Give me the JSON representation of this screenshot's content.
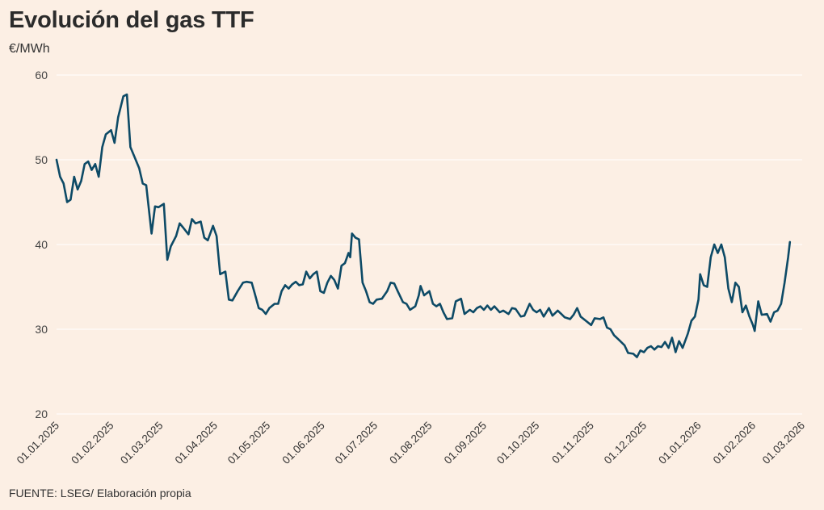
{
  "header": {
    "title": "Evolución del gas TTF",
    "unit": "€/MWh"
  },
  "footer": {
    "source": "FUENTE: LSEG/ Elaboración propia"
  },
  "chart_data": {
    "type": "line",
    "title": "Evolución del gas TTF",
    "ylabel": "€/MWh",
    "ylim": [
      20,
      60
    ],
    "yticks": [
      "60",
      "50",
      "40",
      "30",
      "20"
    ],
    "grid": true,
    "line_color": "#0d4a66",
    "xticks": [
      "01.01.2025",
      "01.02.2025",
      "01.03.2025",
      "01.04.2025",
      "01.05.2025",
      "01.06.2025",
      "01.07.2025",
      "01.08.2025",
      "01.09.2025",
      "01.10.2025",
      "01.11.2025",
      "01.12.2025",
      "01.01.2026",
      "01.02.2026",
      "01.03.2026"
    ],
    "series": [
      {
        "points": [
          [
            "2025-01-01",
            50.0
          ],
          [
            "2025-01-03",
            48.0
          ],
          [
            "2025-01-05",
            47.2
          ],
          [
            "2025-01-07",
            45.0
          ],
          [
            "2025-01-09",
            45.3
          ],
          [
            "2025-01-11",
            48.0
          ],
          [
            "2025-01-13",
            46.5
          ],
          [
            "2025-01-15",
            47.5
          ],
          [
            "2025-01-17",
            49.5
          ],
          [
            "2025-01-19",
            49.8
          ],
          [
            "2025-01-21",
            48.8
          ],
          [
            "2025-01-23",
            49.5
          ],
          [
            "2025-01-25",
            48.0
          ],
          [
            "2025-01-27",
            51.5
          ],
          [
            "2025-01-29",
            53.0
          ],
          [
            "2025-02-01",
            53.5
          ],
          [
            "2025-02-03",
            52.0
          ],
          [
            "2025-02-05",
            55.0
          ],
          [
            "2025-02-08",
            57.5
          ],
          [
            "2025-02-10",
            57.7
          ],
          [
            "2025-02-12",
            51.5
          ],
          [
            "2025-02-14",
            50.5
          ],
          [
            "2025-02-17",
            49.0
          ],
          [
            "2025-02-19",
            47.2
          ],
          [
            "2025-02-21",
            47.0
          ],
          [
            "2025-02-24",
            41.3
          ],
          [
            "2025-02-26",
            44.5
          ],
          [
            "2025-02-28",
            44.4
          ],
          [
            "2025-03-03",
            44.8
          ],
          [
            "2025-03-05",
            38.2
          ],
          [
            "2025-03-07",
            39.8
          ],
          [
            "2025-03-10",
            41.0
          ],
          [
            "2025-03-12",
            42.5
          ],
          [
            "2025-03-14",
            42.0
          ],
          [
            "2025-03-17",
            41.2
          ],
          [
            "2025-03-19",
            43.0
          ],
          [
            "2025-03-21",
            42.5
          ],
          [
            "2025-03-24",
            42.7
          ],
          [
            "2025-03-26",
            40.8
          ],
          [
            "2025-03-28",
            40.5
          ],
          [
            "2025-03-31",
            42.2
          ],
          [
            "2025-04-02",
            41.0
          ],
          [
            "2025-04-04",
            36.5
          ],
          [
            "2025-04-07",
            36.8
          ],
          [
            "2025-04-09",
            33.5
          ],
          [
            "2025-04-11",
            33.4
          ],
          [
            "2025-04-14",
            34.5
          ],
          [
            "2025-04-17",
            35.5
          ],
          [
            "2025-04-19",
            35.6
          ],
          [
            "2025-04-22",
            35.5
          ],
          [
            "2025-04-24",
            34.0
          ],
          [
            "2025-04-26",
            32.5
          ],
          [
            "2025-04-28",
            32.3
          ],
          [
            "2025-04-30",
            31.8
          ],
          [
            "2025-05-02",
            32.5
          ],
          [
            "2025-05-05",
            33.0
          ],
          [
            "2025-05-07",
            33.0
          ],
          [
            "2025-05-09",
            34.5
          ],
          [
            "2025-05-11",
            35.2
          ],
          [
            "2025-05-13",
            34.8
          ],
          [
            "2025-05-15",
            35.3
          ],
          [
            "2025-05-17",
            35.6
          ],
          [
            "2025-05-19",
            35.2
          ],
          [
            "2025-05-21",
            35.3
          ],
          [
            "2025-05-23",
            36.8
          ],
          [
            "2025-05-25",
            36.0
          ],
          [
            "2025-05-27",
            36.5
          ],
          [
            "2025-05-29",
            36.8
          ],
          [
            "2025-05-31",
            34.5
          ],
          [
            "2025-06-02",
            34.3
          ],
          [
            "2025-06-04",
            35.5
          ],
          [
            "2025-06-06",
            36.3
          ],
          [
            "2025-06-08",
            35.8
          ],
          [
            "2025-06-10",
            34.8
          ],
          [
            "2025-06-12",
            37.5
          ],
          [
            "2025-06-14",
            37.8
          ],
          [
            "2025-06-16",
            39.0
          ],
          [
            "2025-06-17",
            38.5
          ],
          [
            "2025-06-18",
            41.3
          ],
          [
            "2025-06-20",
            40.8
          ],
          [
            "2025-06-22",
            40.6
          ],
          [
            "2025-06-24",
            35.5
          ],
          [
            "2025-06-26",
            34.5
          ],
          [
            "2025-06-28",
            33.2
          ],
          [
            "2025-06-30",
            33.0
          ],
          [
            "2025-07-02",
            33.5
          ],
          [
            "2025-07-05",
            33.6
          ],
          [
            "2025-07-08",
            34.5
          ],
          [
            "2025-07-10",
            35.5
          ],
          [
            "2025-07-12",
            35.4
          ],
          [
            "2025-07-14",
            34.5
          ],
          [
            "2025-07-17",
            33.2
          ],
          [
            "2025-07-19",
            33.0
          ],
          [
            "2025-07-21",
            32.3
          ],
          [
            "2025-07-24",
            32.7
          ],
          [
            "2025-07-26",
            34.0
          ],
          [
            "2025-07-27",
            35.1
          ],
          [
            "2025-07-29",
            34.0
          ],
          [
            "2025-08-01",
            34.5
          ],
          [
            "2025-08-03",
            33.0
          ],
          [
            "2025-08-05",
            32.7
          ],
          [
            "2025-08-07",
            33.0
          ],
          [
            "2025-08-09",
            32.0
          ],
          [
            "2025-08-11",
            31.2
          ],
          [
            "2025-08-14",
            31.3
          ],
          [
            "2025-08-16",
            33.3
          ],
          [
            "2025-08-19",
            33.6
          ],
          [
            "2025-08-21",
            31.8
          ],
          [
            "2025-08-24",
            32.3
          ],
          [
            "2025-08-26",
            32.0
          ],
          [
            "2025-08-28",
            32.5
          ],
          [
            "2025-08-30",
            32.7
          ],
          [
            "2025-09-01",
            32.3
          ],
          [
            "2025-09-03",
            32.8
          ],
          [
            "2025-09-05",
            32.3
          ],
          [
            "2025-09-07",
            32.7
          ],
          [
            "2025-09-10",
            32.0
          ],
          [
            "2025-09-12",
            32.2
          ],
          [
            "2025-09-15",
            31.8
          ],
          [
            "2025-09-17",
            32.5
          ],
          [
            "2025-09-19",
            32.4
          ],
          [
            "2025-09-22",
            31.5
          ],
          [
            "2025-09-24",
            31.6
          ],
          [
            "2025-09-27",
            33.0
          ],
          [
            "2025-09-29",
            32.3
          ],
          [
            "2025-10-01",
            32.0
          ],
          [
            "2025-10-03",
            32.3
          ],
          [
            "2025-10-05",
            31.5
          ],
          [
            "2025-10-08",
            32.5
          ],
          [
            "2025-10-10",
            31.6
          ],
          [
            "2025-10-13",
            32.2
          ],
          [
            "2025-10-15",
            31.8
          ],
          [
            "2025-10-17",
            31.4
          ],
          [
            "2025-10-20",
            31.2
          ],
          [
            "2025-10-22",
            31.7
          ],
          [
            "2025-10-24",
            32.5
          ],
          [
            "2025-10-26",
            31.5
          ],
          [
            "2025-10-29",
            31.0
          ],
          [
            "2025-11-01",
            30.5
          ],
          [
            "2025-11-03",
            31.3
          ],
          [
            "2025-11-06",
            31.2
          ],
          [
            "2025-11-08",
            31.4
          ],
          [
            "2025-11-10",
            30.2
          ],
          [
            "2025-11-12",
            30.0
          ],
          [
            "2025-11-14",
            29.3
          ],
          [
            "2025-11-17",
            28.7
          ],
          [
            "2025-11-20",
            28.1
          ],
          [
            "2025-11-22",
            27.2
          ],
          [
            "2025-11-25",
            27.1
          ],
          [
            "2025-11-27",
            26.7
          ],
          [
            "2025-11-29",
            27.5
          ],
          [
            "2025-12-01",
            27.3
          ],
          [
            "2025-12-03",
            27.8
          ],
          [
            "2025-12-05",
            28.0
          ],
          [
            "2025-12-07",
            27.6
          ],
          [
            "2025-12-09",
            28.0
          ],
          [
            "2025-12-11",
            27.9
          ],
          [
            "2025-12-13",
            28.5
          ],
          [
            "2025-12-15",
            27.8
          ],
          [
            "2025-12-17",
            29.0
          ],
          [
            "2025-12-19",
            27.3
          ],
          [
            "2025-12-21",
            28.6
          ],
          [
            "2025-12-23",
            27.8
          ],
          [
            "2025-12-26",
            29.5
          ],
          [
            "2025-12-28",
            31.0
          ],
          [
            "2025-12-30",
            31.5
          ],
          [
            "2026-01-01",
            33.5
          ],
          [
            "2026-01-02",
            36.5
          ],
          [
            "2026-01-04",
            35.2
          ],
          [
            "2026-01-06",
            35.0
          ],
          [
            "2026-01-08",
            38.5
          ],
          [
            "2026-01-10",
            40.0
          ],
          [
            "2026-01-12",
            39.0
          ],
          [
            "2026-01-14",
            40.0
          ],
          [
            "2026-01-16",
            38.5
          ],
          [
            "2026-01-18",
            34.8
          ],
          [
            "2026-01-20",
            33.2
          ],
          [
            "2026-01-22",
            35.5
          ],
          [
            "2026-01-24",
            35.0
          ],
          [
            "2026-01-26",
            32.0
          ],
          [
            "2026-01-28",
            32.8
          ],
          [
            "2026-01-30",
            31.5
          ],
          [
            "2026-02-01",
            30.5
          ],
          [
            "2026-02-02",
            29.8
          ],
          [
            "2026-02-04",
            33.3
          ],
          [
            "2026-02-06",
            31.7
          ],
          [
            "2026-02-09",
            31.8
          ],
          [
            "2026-02-11",
            30.9
          ],
          [
            "2026-02-13",
            32.0
          ],
          [
            "2026-02-15",
            32.2
          ],
          [
            "2026-02-17",
            33.0
          ],
          [
            "2026-02-19",
            35.5
          ],
          [
            "2026-02-21",
            38.5
          ],
          [
            "2026-02-22",
            40.3
          ]
        ]
      }
    ]
  }
}
